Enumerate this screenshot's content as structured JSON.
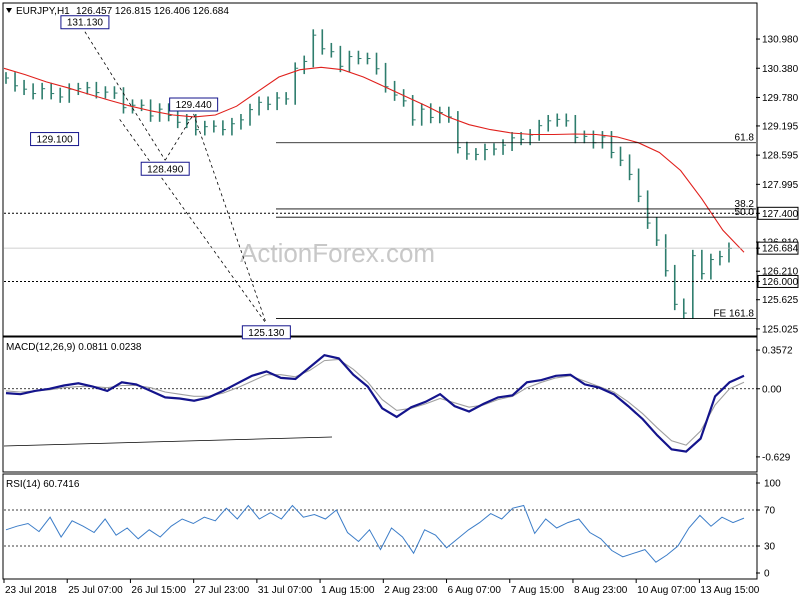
{
  "header": {
    "symbol": "EURJPY,H1",
    "ohlc": "126.457 126.815 126.406 126.684",
    "watermark": "ActionForex.com"
  },
  "colors": {
    "price": "#2e7d6d",
    "ma": "#e0201c",
    "macd": "#14148c",
    "signal": "#a0a0a0",
    "rsi": "#3c7dc8",
    "grid": "#000000"
  },
  "chart_data": [
    {
      "type": "line",
      "panel": "price",
      "ylim": [
        124.9,
        131.7
      ],
      "y_ticks": [
        "130.980",
        "130.380",
        "129.780",
        "129.195",
        "128.595",
        "127.995",
        "127.400",
        "126.810",
        "126.684",
        "126.210",
        "126.000",
        "125.625",
        "125.025"
      ],
      "x_ticks": [
        "23 Jul 2018",
        "25 Jul 07:00",
        "26 Jul 15:00",
        "27 Jul 23:00",
        "31 Jul 07:00",
        "1 Aug 15:00",
        "2 Aug 23:00",
        "6 Aug 07:00",
        "7 Aug 15:00",
        "8 Aug 23:00",
        "10 Aug 07:00",
        "13 Aug 15:00"
      ],
      "series": [
        {
          "type": "ohlc-bars",
          "close": [
            130.18,
            130.02,
            129.95,
            129.86,
            129.96,
            129.86,
            129.79,
            129.95,
            129.96,
            129.98,
            129.88,
            129.89,
            129.87,
            129.57,
            129.62,
            129.62,
            129.4,
            129.54,
            129.41,
            129.27,
            129.32,
            129.12,
            129.18,
            129.19,
            129.12,
            129.24,
            129.32,
            129.53,
            129.68,
            129.64,
            129.77,
            129.75,
            130.38,
            130.52,
            131.06,
            130.78,
            130.72,
            130.42,
            130.62,
            130.58,
            130.58,
            130.37,
            130.0,
            129.83,
            129.71,
            129.32,
            129.54,
            129.37,
            129.47,
            129.38,
            128.75,
            128.62,
            128.61,
            128.71,
            128.72,
            128.8,
            128.95,
            128.92,
            129.01,
            129.2,
            129.3,
            129.33,
            129.3,
            128.96,
            128.98,
            128.85,
            128.97,
            128.65,
            128.49,
            128.2,
            127.75,
            127.2,
            126.85,
            126.22,
            125.53,
            125.35,
            126.53,
            126.16,
            126.45,
            126.51,
            126.68
          ]
        },
        {
          "name": "",
          "type": "ma",
          "values": [
            130.38,
            130.25,
            130.1,
            129.98,
            129.85,
            129.72,
            129.6,
            129.5,
            129.42,
            129.38,
            129.42,
            129.6,
            129.9,
            130.2,
            130.35,
            130.4,
            130.35,
            130.2,
            130.0,
            129.8,
            129.6,
            129.38,
            129.22,
            129.12,
            129.05,
            129.02,
            129.02,
            129.03,
            129.02,
            128.97,
            128.85,
            128.65,
            128.28,
            127.7,
            127.05,
            126.6
          ]
        }
      ],
      "annotations": [
        {
          "text": "131.130",
          "kind": "swing-high",
          "x": 1.28,
          "y": 131.13
        },
        {
          "text": "129.100",
          "kind": "swing-low",
          "x": 0.8,
          "y": 129.1
        },
        {
          "text": "128.490",
          "kind": "swing-low",
          "x": 2.55,
          "y": 128.49
        },
        {
          "text": "129.440",
          "kind": "swing-high",
          "x": 3.0,
          "y": 129.44
        },
        {
          "text": "125.130",
          "kind": "swing-low",
          "x": 4.15,
          "y": 125.13
        },
        {
          "text": "127.400",
          "kind": "dotted-level",
          "y": 127.4
        },
        {
          "text": "126.000",
          "kind": "dotted-level",
          "y": 126.0
        },
        {
          "text": "61.8",
          "kind": "fib-level",
          "y": 128.85
        },
        {
          "text": "38.2",
          "kind": "fib-level",
          "y": 127.49
        },
        {
          "text": "50.0",
          "kind": "fib-level",
          "y": 127.32
        },
        {
          "text": "FE 161.8",
          "kind": "fib-level",
          "y": 125.24
        }
      ],
      "current_price": "126.684"
    },
    {
      "type": "line",
      "panel": "macd",
      "title": "MACD(12,26,9) 0.0811 0.0238",
      "ylim": [
        -0.75,
        0.45
      ],
      "y_ticks": [
        "0.3572",
        "0.00",
        "-0.629"
      ],
      "series": [
        {
          "name": "",
          "values": [
            -0.04,
            -0.05,
            -0.02,
            0.0,
            0.03,
            0.05,
            0.02,
            -0.02,
            0.06,
            0.04,
            -0.02,
            -0.08,
            -0.09,
            -0.11,
            -0.08,
            -0.02,
            0.05,
            0.12,
            0.16,
            0.1,
            0.09,
            0.2,
            0.31,
            0.28,
            0.13,
            0.02,
            -0.18,
            -0.26,
            -0.17,
            -0.12,
            -0.05,
            -0.16,
            -0.21,
            -0.14,
            -0.08,
            -0.06,
            0.06,
            0.08,
            0.12,
            0.13,
            0.04,
            0.01,
            -0.05,
            -0.16,
            -0.28,
            -0.43,
            -0.56,
            -0.58,
            -0.46,
            -0.07,
            0.06,
            0.12
          ]
        },
        {
          "name": "",
          "values": [
            -0.02,
            -0.03,
            -0.02,
            -0.01,
            0.01,
            0.02,
            0.02,
            0.01,
            0.03,
            0.03,
            0.01,
            -0.03,
            -0.05,
            -0.07,
            -0.07,
            -0.04,
            0.01,
            0.07,
            0.13,
            0.13,
            0.11,
            0.17,
            0.26,
            0.27,
            0.18,
            0.06,
            -0.1,
            -0.2,
            -0.18,
            -0.14,
            -0.09,
            -0.13,
            -0.17,
            -0.15,
            -0.1,
            -0.07,
            0.01,
            0.06,
            0.1,
            0.12,
            0.07,
            0.02,
            -0.03,
            -0.12,
            -0.23,
            -0.36,
            -0.48,
            -0.52,
            -0.39,
            -0.15,
            0.0,
            0.06
          ]
        }
      ]
    },
    {
      "type": "line",
      "panel": "rsi",
      "title": "RSI(14) 60.7416",
      "ylim": [
        0,
        100
      ],
      "y_ticks": [
        "100",
        "70",
        "30",
        "0"
      ],
      "series": [
        {
          "name": "",
          "values": [
            48,
            52,
            55,
            46,
            62,
            40,
            58,
            52,
            45,
            60,
            42,
            50,
            38,
            48,
            40,
            52,
            60,
            55,
            62,
            58,
            72,
            60,
            75,
            60,
            67,
            60,
            75,
            62,
            65,
            60,
            70,
            45,
            35,
            48,
            26,
            50,
            40,
            22,
            48,
            42,
            28,
            38,
            48,
            56,
            66,
            60,
            72,
            75,
            44,
            60,
            50,
            56,
            60,
            45,
            38,
            25,
            18,
            22,
            26,
            12,
            20,
            30,
            50,
            64,
            52,
            62,
            56,
            61
          ]
        }
      ]
    }
  ]
}
